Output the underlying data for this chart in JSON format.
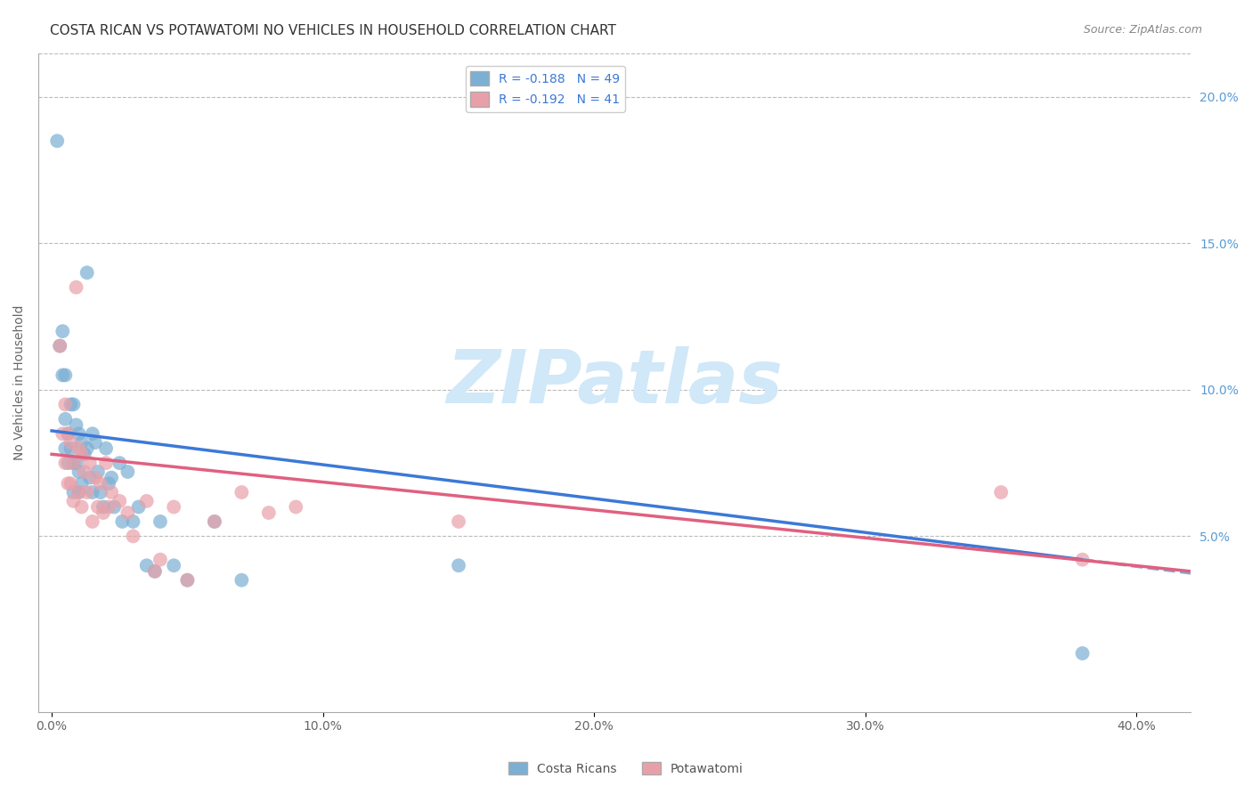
{
  "title": "COSTA RICAN VS POTAWATOMI NO VEHICLES IN HOUSEHOLD CORRELATION CHART",
  "source": "Source: ZipAtlas.com",
  "ylabel": "No Vehicles in Household",
  "right_ytick_labels": [
    "20.0%",
    "15.0%",
    "10.0%",
    "5.0%"
  ],
  "right_ytick_values": [
    0.2,
    0.15,
    0.1,
    0.05
  ],
  "xtick_labels": [
    "0.0%",
    "10.0%",
    "20.0%",
    "30.0%",
    "40.0%"
  ],
  "xtick_values": [
    0.0,
    0.1,
    0.2,
    0.3,
    0.4
  ],
  "xlim": [
    -0.005,
    0.42
  ],
  "ylim": [
    -0.01,
    0.215
  ],
  "legend_entries": [
    {
      "label": "R = -0.188   N = 49",
      "color": "#6fa8dc"
    },
    {
      "label": "R = -0.192   N = 41",
      "color": "#ea9999"
    }
  ],
  "legend_labels_bottom": [
    "Costa Ricans",
    "Potawatomi"
  ],
  "costa_rican_color": "#7bafd4",
  "potawatomi_color": "#e8a0a8",
  "blue_line_color": "#3c78d8",
  "pink_line_color": "#e06080",
  "dashed_line_color": "#7bafd4",
  "watermark_text": "ZIPatlas",
  "watermark_color": "#d0e8f8",
  "background_color": "#ffffff",
  "grid_color": "#bbbbbb",
  "right_axis_color": "#5b9bd5",
  "costa_rican_x": [
    0.002,
    0.003,
    0.004,
    0.004,
    0.005,
    0.005,
    0.005,
    0.006,
    0.006,
    0.007,
    0.007,
    0.008,
    0.008,
    0.008,
    0.009,
    0.009,
    0.01,
    0.01,
    0.01,
    0.011,
    0.011,
    0.012,
    0.013,
    0.013,
    0.014,
    0.015,
    0.015,
    0.016,
    0.017,
    0.018,
    0.019,
    0.02,
    0.021,
    0.022,
    0.023,
    0.025,
    0.026,
    0.028,
    0.03,
    0.032,
    0.035,
    0.038,
    0.04,
    0.045,
    0.05,
    0.06,
    0.07,
    0.15,
    0.38
  ],
  "costa_rican_y": [
    0.185,
    0.115,
    0.12,
    0.105,
    0.105,
    0.09,
    0.08,
    0.085,
    0.075,
    0.095,
    0.08,
    0.095,
    0.075,
    0.065,
    0.088,
    0.075,
    0.085,
    0.072,
    0.065,
    0.082,
    0.068,
    0.078,
    0.14,
    0.08,
    0.07,
    0.085,
    0.065,
    0.082,
    0.072,
    0.065,
    0.06,
    0.08,
    0.068,
    0.07,
    0.06,
    0.075,
    0.055,
    0.072,
    0.055,
    0.06,
    0.04,
    0.038,
    0.055,
    0.04,
    0.035,
    0.055,
    0.035,
    0.04,
    0.01
  ],
  "potawatomi_x": [
    0.003,
    0.004,
    0.005,
    0.005,
    0.006,
    0.006,
    0.007,
    0.007,
    0.008,
    0.008,
    0.009,
    0.01,
    0.01,
    0.011,
    0.011,
    0.012,
    0.013,
    0.014,
    0.015,
    0.016,
    0.017,
    0.018,
    0.019,
    0.02,
    0.021,
    0.022,
    0.025,
    0.028,
    0.03,
    0.035,
    0.038,
    0.04,
    0.045,
    0.05,
    0.06,
    0.07,
    0.08,
    0.09,
    0.15,
    0.35,
    0.38
  ],
  "potawatomi_y": [
    0.115,
    0.085,
    0.095,
    0.075,
    0.085,
    0.068,
    0.082,
    0.068,
    0.075,
    0.062,
    0.135,
    0.08,
    0.065,
    0.078,
    0.06,
    0.072,
    0.065,
    0.075,
    0.055,
    0.07,
    0.06,
    0.068,
    0.058,
    0.075,
    0.06,
    0.065,
    0.062,
    0.058,
    0.05,
    0.062,
    0.038,
    0.042,
    0.06,
    0.035,
    0.055,
    0.065,
    0.058,
    0.06,
    0.055,
    0.065,
    0.042
  ],
  "cr_line_x0": 0.0,
  "cr_line_x1": 0.38,
  "cr_line_x_dash": 0.42,
  "cr_line_y0": 0.086,
  "cr_line_y1": 0.042,
  "pot_line_y0": 0.078,
  "pot_line_y1": 0.038,
  "title_fontsize": 11,
  "source_fontsize": 9,
  "axis_label_fontsize": 10,
  "tick_fontsize": 10,
  "legend_fontsize": 10,
  "watermark_fontsize": 60
}
